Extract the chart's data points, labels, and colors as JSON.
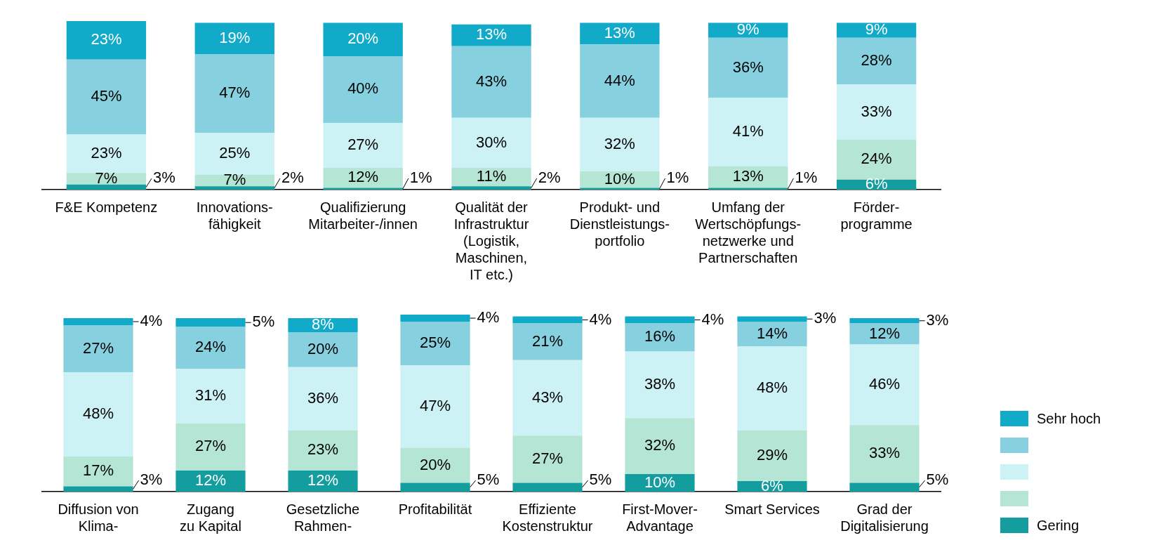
{
  "chart_data": [
    {
      "type": "bar",
      "stacked": true,
      "categories": [
        "F&E Kompetenz",
        "Innovations-\nfähigkeit",
        "Qualifizierung\nMitarbeiter-/innen",
        "Qualität der\nInfrastruktur\n(Logistik,\nMaschinen,\nIT etc.)",
        "Produkt- und\nDienstleistungs-\nportfolio",
        "Umfang der\nWertschöpfungs-\nnetzwerke und\nPartnerschaften",
        "Förder-\nprogramme"
      ],
      "series": [
        {
          "color": "#139d9f",
          "values": [
            3,
            2,
            1,
            2,
            1,
            1,
            6
          ],
          "value_labels": [
            "3%",
            "2%",
            "1%",
            "2%",
            "1%",
            "1%",
            "6%"
          ]
        },
        {
          "color": "#b5e5d5",
          "values": [
            7,
            7,
            12,
            11,
            10,
            13,
            24
          ],
          "value_labels": [
            "7%",
            "7%",
            "12%",
            "11%",
            "10%",
            "13%",
            "24%"
          ]
        },
        {
          "color": "#ccf2f6",
          "values": [
            23,
            25,
            27,
            30,
            32,
            41,
            33
          ],
          "value_labels": [
            "23%",
            "25%",
            "27%",
            "30%",
            "32%",
            "41%",
            "33%"
          ]
        },
        {
          "color": "#86d0df",
          "values": [
            45,
            47,
            40,
            43,
            44,
            36,
            28
          ],
          "value_labels": [
            "45%",
            "47%",
            "40%",
            "43%",
            "44%",
            "36%",
            "28%"
          ]
        },
        {
          "color": "#12aac9",
          "values": [
            23,
            19,
            20,
            13,
            13,
            9,
            9
          ],
          "value_labels": [
            "23%",
            "19%",
            "20%",
            "13%",
            "13%",
            "9%",
            "9%"
          ]
        }
      ]
    },
    {
      "type": "bar",
      "stacked": true,
      "legend": "right",
      "categories": [
        "Diffusion von\nKlima-",
        "Zugang\nzu Kapital",
        "Gesetzliche\nRahmen-",
        "Profitabilität",
        "Effiziente\nKostenstruktur",
        "First-Mover-\nAdvantage",
        "Smart Services",
        "Grad der\nDigitalisierung"
      ],
      "series": [
        {
          "name": "Gering",
          "color": "#139d9f",
          "values": [
            3,
            12,
            12,
            5,
            5,
            10,
            6,
            5
          ],
          "value_labels": [
            "3%",
            "12%",
            "12%",
            "5%",
            "5%",
            "10%",
            "6%",
            "5%"
          ]
        },
        {
          "color": "#b5e5d5",
          "values": [
            17,
            27,
            23,
            20,
            27,
            32,
            29,
            33
          ],
          "value_labels": [
            "17%",
            "27%",
            "23%",
            "20%",
            "27%",
            "32%",
            "29%",
            "33%"
          ]
        },
        {
          "color": "#ccf2f6",
          "values": [
            48,
            31,
            36,
            47,
            43,
            38,
            48,
            46
          ],
          "value_labels": [
            "48%",
            "31%",
            "36%",
            "47%",
            "43%",
            "38%",
            "48%",
            "46%"
          ]
        },
        {
          "color": "#86d0df",
          "values": [
            27,
            24,
            20,
            25,
            21,
            16,
            14,
            12
          ],
          "value_labels": [
            "27%",
            "24%",
            "20%",
            "25%",
            "21%",
            "16%",
            "14%",
            "12%"
          ]
        },
        {
          "name": "Sehr hoch",
          "color": "#12aac9",
          "values": [
            4,
            5,
            8,
            4,
            4,
            4,
            3,
            3
          ],
          "value_labels": [
            "4%",
            "5%",
            "8%",
            "4%",
            "4%",
            "4%",
            "3%",
            "3%"
          ]
        }
      ]
    }
  ]
}
